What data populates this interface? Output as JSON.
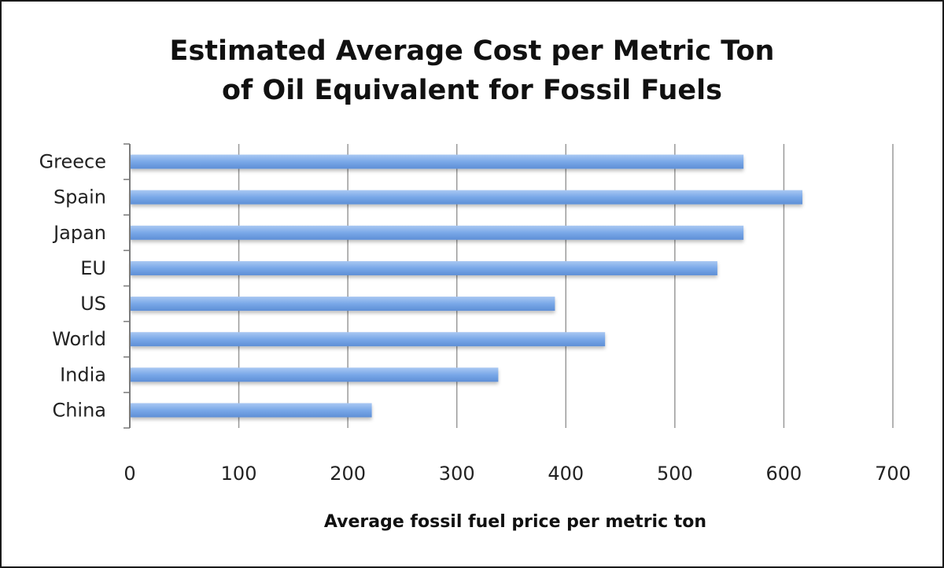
{
  "chart_data": {
    "type": "bar",
    "orientation": "horizontal",
    "title_lines": [
      "Estimated Average Cost per Metric Ton",
      "of Oil Equivalent for Fossil Fuels"
    ],
    "xlabel": "Average fossil fuel price per metric ton",
    "ylabel": "",
    "categories": [
      "Greece",
      "Spain",
      "Japan",
      "EU",
      "US",
      "World",
      "India",
      "China"
    ],
    "values": [
      563,
      617,
      563,
      539,
      390,
      436,
      338,
      222
    ],
    "xlim": [
      0,
      700
    ],
    "xticks": [
      "0",
      "100",
      "200",
      "300",
      "400",
      "500",
      "600",
      "700"
    ],
    "grid": "vertical",
    "legend": "none",
    "bar_color": "#79a8e8"
  }
}
